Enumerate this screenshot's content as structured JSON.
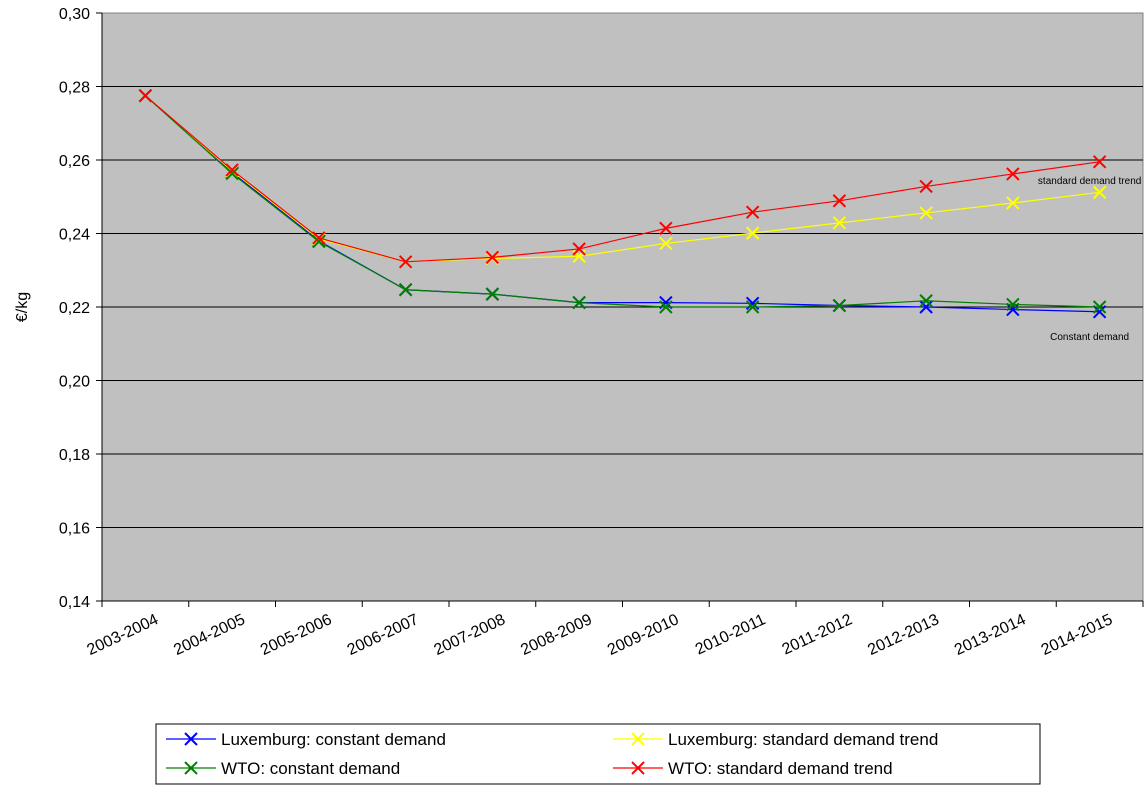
{
  "chart_data": {
    "type": "line",
    "title": "",
    "xlabel": "",
    "ylabel": "€/kg",
    "ylim": [
      0.14,
      0.3
    ],
    "ytick_values": [
      0.14,
      0.16,
      0.18,
      0.2,
      0.22,
      0.24,
      0.26,
      0.28,
      0.3
    ],
    "ytick_labels": [
      "0,14",
      "0,16",
      "0,18",
      "0,20",
      "0,22",
      "0,24",
      "0,26",
      "0,28",
      "0,30"
    ],
    "grid": true,
    "plot_background": "#c0c0c0",
    "categories": [
      "2003-2004",
      "2004-2005",
      "2005-2006",
      "2006-2007",
      "2007-2008",
      "2008-2009",
      "2009-2010",
      "2010-2011",
      "2011-2012",
      "2012-2013",
      "2013-2014",
      "2014-2015"
    ],
    "series": [
      {
        "name": "Luxemburg: constant demand",
        "color": "#0000ff",
        "values": [
          0.2775,
          0.2567,
          0.238,
          0.2247,
          0.2235,
          0.2212,
          0.2212,
          0.221,
          0.2204,
          0.22,
          0.2193,
          0.2187
        ]
      },
      {
        "name": "Luxemburg: standard demand trend",
        "color": "#ffff00",
        "values": [
          0.2775,
          0.257,
          0.2385,
          0.2323,
          0.2332,
          0.2338,
          0.2373,
          0.2401,
          0.2429,
          0.2456,
          0.2483,
          0.2512
        ]
      },
      {
        "name": "WTO: constant demand",
        "color": "#008000",
        "values": [
          0.2775,
          0.2563,
          0.2378,
          0.2247,
          0.2235,
          0.2212,
          0.22,
          0.22,
          0.2204,
          0.2217,
          0.2207,
          0.22
        ]
      },
      {
        "name": "WTO: standard demand trend",
        "color": "#ff0000",
        "values": [
          0.2775,
          0.2573,
          0.2388,
          0.2323,
          0.2335,
          0.2358,
          0.2414,
          0.2458,
          0.2489,
          0.2528,
          0.2562,
          0.2595
        ]
      }
    ],
    "annotations": [
      {
        "text": "standard demand trend",
        "x": "2014-2015",
        "y": 0.2535
      },
      {
        "text": "Constant demand",
        "x": "2014-2015",
        "y": 0.211
      }
    ],
    "legend_placement": "bottom"
  }
}
